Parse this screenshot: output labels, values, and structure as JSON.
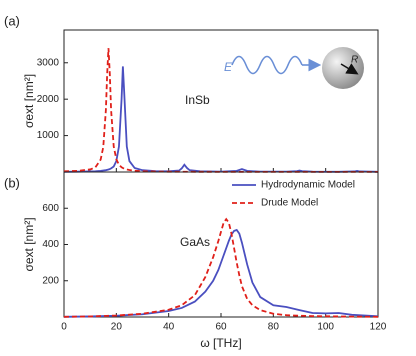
{
  "chart_data": [
    {
      "type": "line",
      "panel_label": "(a)",
      "material": "InSb",
      "inset_field": "E",
      "inset_radius": "R",
      "y_label": "σext [nm²]",
      "x": [
        0,
        5,
        10,
        12,
        14,
        15,
        16,
        16.5,
        17,
        17.5,
        18,
        19,
        20,
        21,
        22,
        22.5,
        23,
        24,
        25,
        27,
        30,
        35,
        40,
        44,
        45,
        46,
        47,
        48,
        52,
        60,
        66,
        68,
        70,
        75,
        85,
        89,
        90,
        91,
        95,
        105,
        111,
        112,
        113,
        120
      ],
      "series": [
        {
          "color": "#4a4fc0",
          "dash": false,
          "values": [
            5,
            8,
            15,
            20,
            30,
            40,
            50,
            60,
            70,
            80,
            100,
            150,
            300,
            700,
            2000,
            2900,
            2200,
            700,
            300,
            110,
            50,
            25,
            20,
            40,
            100,
            200,
            110,
            50,
            20,
            10,
            30,
            80,
            30,
            10,
            10,
            25,
            40,
            25,
            8,
            5,
            15,
            30,
            15,
            5
          ]
        },
        {
          "color": "#e0201a",
          "dash": true,
          "values": [
            20,
            30,
            70,
            130,
            340,
            680,
            1700,
            2700,
            3400,
            2700,
            1700,
            700,
            350,
            200,
            130,
            110,
            90,
            70,
            55,
            35,
            20,
            12,
            8,
            7,
            7,
            7,
            7,
            6,
            5,
            4,
            4,
            4,
            4,
            3,
            3,
            3,
            3,
            3,
            3,
            3,
            3,
            3,
            3,
            3
          ]
        }
      ],
      "xlim": [
        0,
        120
      ],
      "xticks": [
        0,
        20,
        40,
        60,
        80,
        100,
        120
      ],
      "ylim": [
        0,
        3900
      ],
      "yticks": [
        1000,
        2000,
        3000
      ],
      "legend": false
    },
    {
      "type": "line",
      "panel_label": "(b)",
      "material": "GaAs",
      "y_label": "σext [nm²]",
      "x_label": "ω [THz]",
      "x": [
        0,
        10,
        20,
        30,
        40,
        45,
        50,
        54,
        57,
        59,
        60,
        61,
        62,
        63,
        64,
        65,
        66,
        67,
        68,
        70,
        72,
        75,
        80,
        85,
        90,
        95,
        100,
        105,
        110,
        120
      ],
      "series": [
        {
          "name": "Hydrodynamic Model",
          "color": "#4a4fc0",
          "dash": false,
          "values": [
            1,
            3,
            7,
            15,
            33,
            50,
            85,
            140,
            200,
            260,
            300,
            340,
            380,
            420,
            455,
            475,
            480,
            460,
            410,
            290,
            190,
            110,
            65,
            55,
            38,
            22,
            20,
            22,
            12,
            4
          ]
        },
        {
          "name": "Drude Model",
          "color": "#e0201a",
          "dash": true,
          "values": [
            1,
            3,
            8,
            18,
            40,
            65,
            120,
            220,
            330,
            420,
            470,
            520,
            540,
            520,
            460,
            380,
            300,
            230,
            170,
            100,
            65,
            38,
            18,
            10,
            7,
            5,
            4,
            3,
            2,
            1
          ]
        }
      ],
      "xlim": [
        0,
        120
      ],
      "xticks": [
        0,
        20,
        40,
        60,
        80,
        100,
        120
      ],
      "ylim": [
        0,
        800
      ],
      "yticks": [
        200,
        400,
        600
      ],
      "legend": true
    }
  ]
}
